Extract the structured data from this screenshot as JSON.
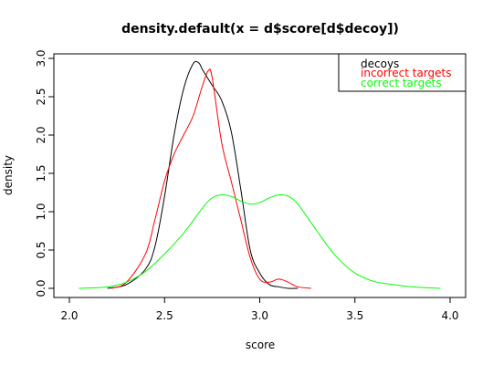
{
  "chart_data": {
    "type": "line",
    "title": "density.default(x = d$score[d$decoy])",
    "xlabel": "score",
    "ylabel": "density",
    "xlim": [
      2.0,
      4.0
    ],
    "ylim": [
      0.0,
      3.0
    ],
    "x_ticks": [
      "2.0",
      "2.5",
      "3.0",
      "3.5",
      "4.0"
    ],
    "y_ticks": [
      "0.0",
      "0.5",
      "1.0",
      "1.5",
      "2.0",
      "2.5",
      "3.0"
    ],
    "grid": false,
    "legend_position": "top-right",
    "series": [
      {
        "name": "decoys",
        "color": "#000000",
        "x": [
          2.2,
          2.3,
          2.4,
          2.45,
          2.5,
          2.55,
          2.6,
          2.65,
          2.68,
          2.7,
          2.75,
          2.8,
          2.85,
          2.9,
          2.95,
          3.0,
          3.05,
          3.1,
          3.15,
          3.2
        ],
        "y": [
          0.0,
          0.05,
          0.25,
          0.55,
          1.2,
          2.0,
          2.6,
          2.93,
          2.94,
          2.85,
          2.65,
          2.45,
          2.05,
          1.3,
          0.5,
          0.2,
          0.05,
          0.02,
          0.0,
          0.0
        ]
      },
      {
        "name": "incorrect targets",
        "color": "#ff0000",
        "x": [
          2.22,
          2.3,
          2.4,
          2.45,
          2.5,
          2.55,
          2.6,
          2.65,
          2.7,
          2.73,
          2.75,
          2.8,
          2.85,
          2.9,
          2.95,
          3.0,
          3.05,
          3.1,
          3.15,
          3.2,
          3.27
        ],
        "y": [
          0.0,
          0.08,
          0.45,
          0.9,
          1.4,
          1.75,
          2.0,
          2.25,
          2.65,
          2.84,
          2.75,
          1.9,
          1.4,
          0.9,
          0.4,
          0.12,
          0.08,
          0.12,
          0.08,
          0.02,
          0.0
        ]
      },
      {
        "name": "correct targets",
        "color": "#00ff00",
        "x": [
          2.05,
          2.2,
          2.3,
          2.4,
          2.5,
          2.6,
          2.7,
          2.75,
          2.8,
          2.85,
          2.9,
          2.95,
          3.0,
          3.05,
          3.1,
          3.15,
          3.2,
          3.3,
          3.4,
          3.5,
          3.6,
          3.7,
          3.8,
          3.95
        ],
        "y": [
          0.0,
          0.02,
          0.08,
          0.22,
          0.45,
          0.72,
          1.05,
          1.18,
          1.22,
          1.2,
          1.14,
          1.1,
          1.12,
          1.18,
          1.22,
          1.2,
          1.1,
          0.75,
          0.42,
          0.2,
          0.09,
          0.05,
          0.02,
          0.0
        ]
      }
    ]
  }
}
